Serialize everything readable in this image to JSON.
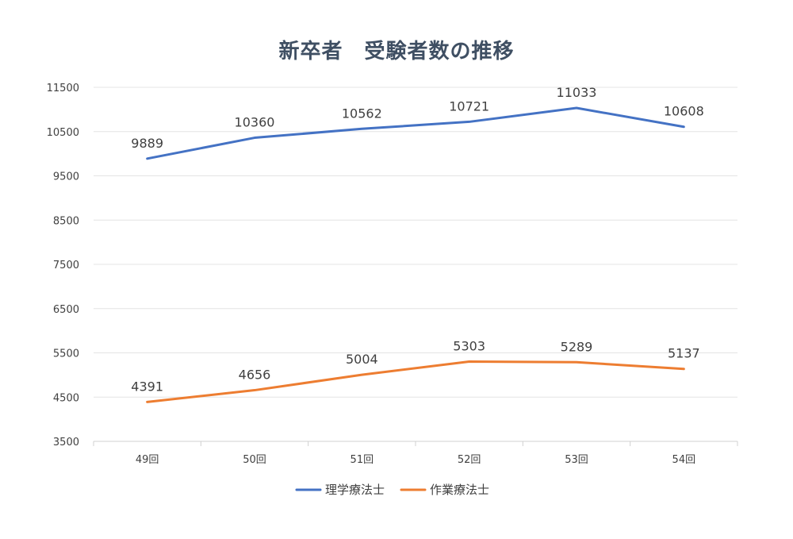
{
  "chart_data": {
    "type": "line",
    "title": "新卒者　受験者数の推移",
    "categories": [
      "49回",
      "50回",
      "51回",
      "52回",
      "53回",
      "54回"
    ],
    "y_ticks": [
      3500,
      4500,
      5500,
      6500,
      7500,
      8500,
      9500,
      10500,
      11500
    ],
    "ylim": [
      3500,
      11500
    ],
    "grid": true,
    "legend_position": "bottom",
    "series": [
      {
        "name": "理学療法士",
        "color": "#4472c4",
        "values": [
          9889,
          10360,
          10562,
          10721,
          11033,
          10608
        ],
        "labels": [
          "9889",
          "10360",
          "10562",
          "10721",
          "11033",
          "10608"
        ]
      },
      {
        "name": "作業療法士",
        "color": "#ed7d31",
        "values": [
          4391,
          4656,
          5004,
          5303,
          5289,
          5137
        ],
        "labels": [
          "4391",
          "4656",
          "5004",
          "5303",
          "5289",
          "5137"
        ]
      }
    ]
  }
}
